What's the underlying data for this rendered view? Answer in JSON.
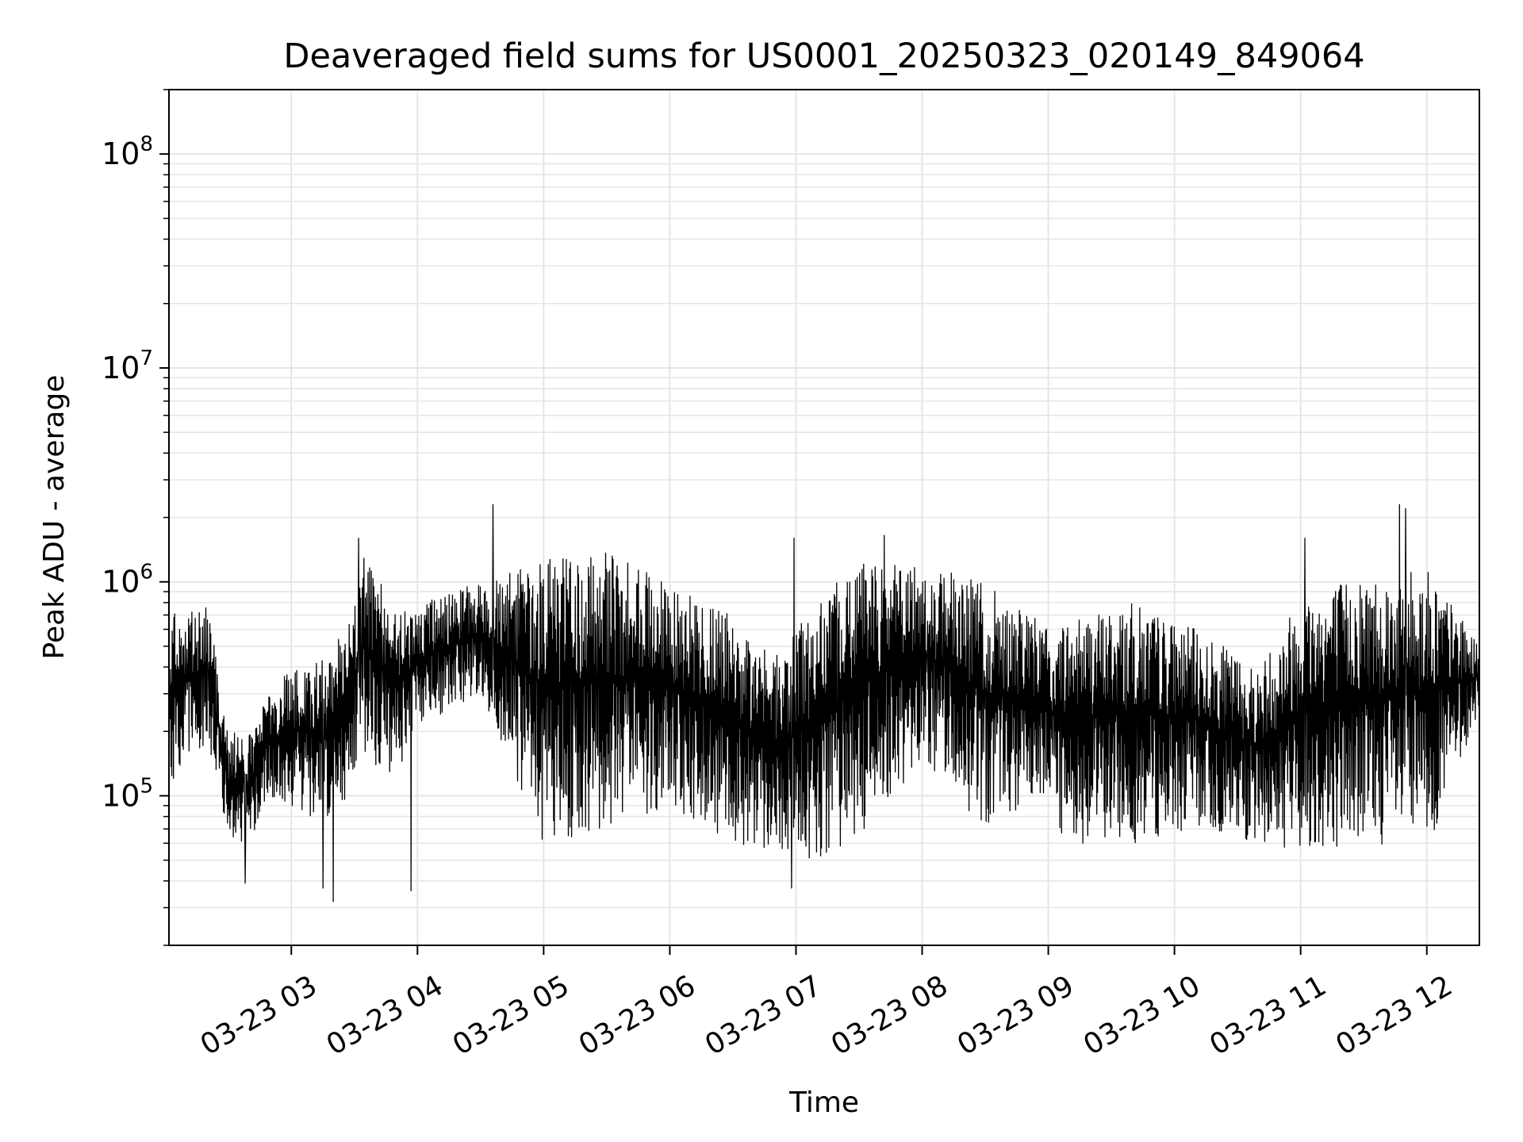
{
  "chart_data": {
    "type": "line",
    "title": "Deaveraged field sums for US0001_20250323_020149_849064",
    "xlabel": "Time",
    "ylabel": "Peak ADU - average",
    "yscale": "log",
    "ylim": [
      20000,
      200000000
    ],
    "xlim": [
      "2025-03-23T02:01:49",
      "2025-03-23T12:25:00"
    ],
    "x_ticks": [
      {
        "t": "2025-03-23T03:00",
        "label": "03-23 03"
      },
      {
        "t": "2025-03-23T04:00",
        "label": "03-23 04"
      },
      {
        "t": "2025-03-23T05:00",
        "label": "03-23 05"
      },
      {
        "t": "2025-03-23T06:00",
        "label": "03-23 06"
      },
      {
        "t": "2025-03-23T07:00",
        "label": "03-23 07"
      },
      {
        "t": "2025-03-23T08:00",
        "label": "03-23 08"
      },
      {
        "t": "2025-03-23T09:00",
        "label": "03-23 09"
      },
      {
        "t": "2025-03-23T10:00",
        "label": "03-23 10"
      },
      {
        "t": "2025-03-23T11:00",
        "label": "03-23 11"
      },
      {
        "t": "2025-03-23T12:00",
        "label": "03-23 12"
      }
    ],
    "y_ticks": [
      {
        "value": 100000,
        "base": "10",
        "exp": "5"
      },
      {
        "value": 1000000,
        "base": "10",
        "exp": "6"
      },
      {
        "value": 10000000,
        "base": "10",
        "exp": "7"
      },
      {
        "value": 100000000,
        "base": "10",
        "exp": "8"
      }
    ],
    "grid": true,
    "line_color": "#000000",
    "grid_color": "#e6e6e6",
    "series_envelope": {
      "note_is_not_displayed": false,
      "x": [
        "2025-03-23T02:02",
        "2025-03-23T02:20",
        "2025-03-23T02:30",
        "2025-03-23T02:40",
        "2025-03-23T02:50",
        "2025-03-23T03:00",
        "2025-03-23T03:20",
        "2025-03-23T03:35",
        "2025-03-23T03:50",
        "2025-03-23T04:00",
        "2025-03-23T04:30",
        "2025-03-23T05:00",
        "2025-03-23T05:30",
        "2025-03-23T06:00",
        "2025-03-23T06:30",
        "2025-03-23T06:50",
        "2025-03-23T07:10",
        "2025-03-23T07:30",
        "2025-03-23T08:00",
        "2025-03-23T08:30",
        "2025-03-23T08:50",
        "2025-03-23T09:10",
        "2025-03-23T09:40",
        "2025-03-23T10:10",
        "2025-03-23T10:40",
        "2025-03-23T11:00",
        "2025-03-23T11:30",
        "2025-03-23T12:00",
        "2025-03-23T12:25"
      ],
      "low": [
        110000,
        180000,
        60000,
        60000,
        100000,
        90000,
        70000,
        150000,
        120000,
        200000,
        300000,
        60000,
        70000,
        90000,
        60000,
        55000,
        50000,
        60000,
        150000,
        70000,
        90000,
        60000,
        60000,
        70000,
        60000,
        55000,
        60000,
        55000,
        250000
      ],
      "high": [
        700000,
        800000,
        200000,
        200000,
        300000,
        400000,
        450000,
        1400000,
        700000,
        800000,
        1000000,
        1300000,
        1400000,
        1000000,
        700000,
        450000,
        800000,
        1300000,
        1200000,
        1000000,
        700000,
        700000,
        800000,
        600000,
        400000,
        900000,
        1100000,
        1200000,
        500000
      ]
    },
    "spikes": [
      {
        "t": "2025-03-23T04:36",
        "value": 2300000
      },
      {
        "t": "2025-03-23T11:47",
        "value": 2300000
      },
      {
        "t": "2025-03-23T11:50",
        "value": 2200000
      },
      {
        "t": "2025-03-23T06:59",
        "value": 1600000
      },
      {
        "t": "2025-03-23T03:32",
        "value": 1600000
      },
      {
        "t": "2025-03-23T07:42",
        "value": 1650000
      },
      {
        "t": "2025-03-23T11:02",
        "value": 1600000
      },
      {
        "t": "2025-03-23T03:20",
        "value": 32000
      },
      {
        "t": "2025-03-23T03:15",
        "value": 37000
      },
      {
        "t": "2025-03-23T03:57",
        "value": 36000
      },
      {
        "t": "2025-03-23T06:58",
        "value": 37000
      },
      {
        "t": "2025-03-23T02:38",
        "value": 39000
      }
    ]
  }
}
